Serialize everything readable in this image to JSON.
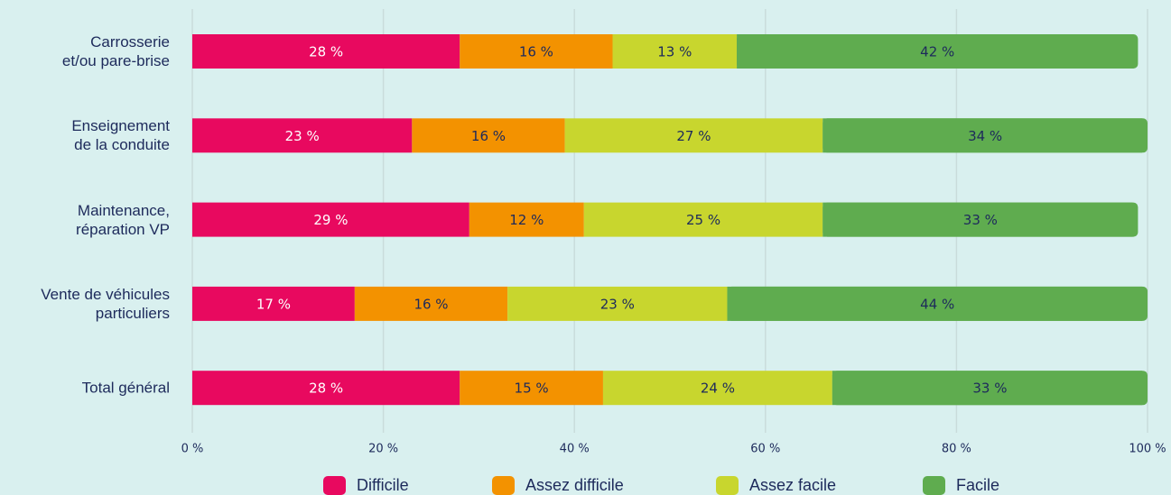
{
  "chart_data": {
    "type": "stacked-bar-horizontal",
    "categories": [
      "Carrosserie\net/ou pare-brise",
      "Enseignement\nde la conduite",
      "Maintenance,\nréparation VP",
      "Vente de véhicules\nparticuliers",
      "Total général"
    ],
    "series": [
      {
        "name": "Difficile",
        "color": "#e8095f",
        "values": [
          28,
          23,
          29,
          17,
          28
        ],
        "value_labels": [
          "28 %",
          "23 %",
          "29 %",
          "17 %",
          "28 %"
        ]
      },
      {
        "name": "Assez difficile",
        "color": "#f39200",
        "values": [
          16,
          16,
          12,
          16,
          15
        ],
        "value_labels": [
          "16 %",
          "16 %",
          "12 %",
          "16 %",
          "15 %"
        ]
      },
      {
        "name": "Assez facile",
        "color": "#c8d62e",
        "values": [
          13,
          27,
          25,
          23,
          24
        ],
        "value_labels": [
          "13 %",
          "27 %",
          "25 %",
          "23 %",
          "24 %"
        ]
      },
      {
        "name": "Facile",
        "color": "#5fac4f",
        "values": [
          42,
          34,
          33,
          44,
          33
        ],
        "value_labels": [
          "42 %",
          "34 %",
          "33 %",
          "44 %",
          "33 %"
        ]
      }
    ],
    "xlim": [
      0,
      100
    ],
    "xticks": [
      {
        "value": 0,
        "label": "0 %"
      },
      {
        "value": 20,
        "label": "20 %"
      },
      {
        "value": 40,
        "label": "40 %"
      },
      {
        "value": 60,
        "label": "60 %"
      },
      {
        "value": 80,
        "label": "80 %"
      },
      {
        "value": 100,
        "label": "100 %"
      }
    ],
    "grid": true,
    "legend": "bottom"
  }
}
